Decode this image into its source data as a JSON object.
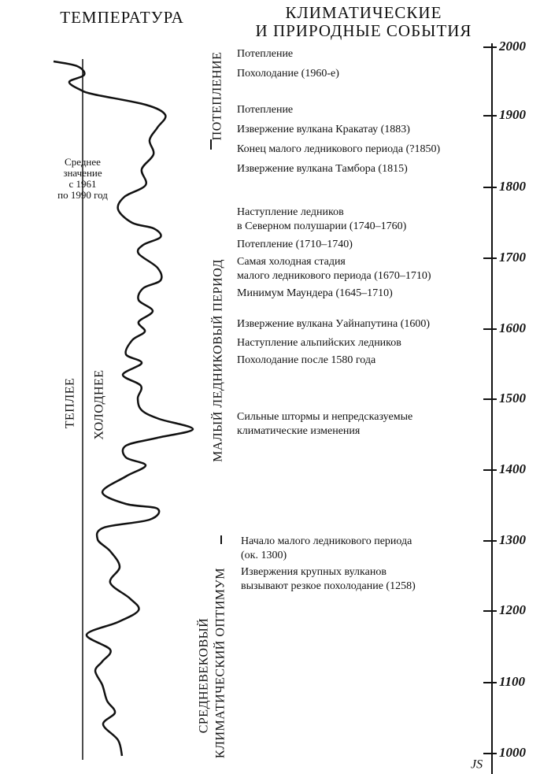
{
  "header": {
    "temperature": "ТЕМПЕРАТУРА",
    "events_title": [
      "КЛИМАТИЧЕСКИЕ",
      "И ПРИРОДНЫЕ СОБЫТИЯ"
    ]
  },
  "mean_label": [
    "Среднее",
    "значение",
    "с 1961",
    "по 1990 год"
  ],
  "warmer": "ТЕПЛЕЕ",
  "colder": "ХОЛОДНЕЕ",
  "periods": {
    "warming": "ПОТЕПЛЕНИЕ",
    "little_ice_age": "МАЛЫЙ ЛЕДНИКОВЫЙ ПЕРИОД",
    "medieval_optimum": [
      "СРЕДНЕВЕКОВЫЙ",
      "КЛИМАТИЧЕСКИЙ ОПТИМУМ"
    ]
  },
  "events": [
    [
      "Потепление"
    ],
    [
      "Похолодание (1960-е)"
    ],
    [
      "Потепление"
    ],
    [
      "Извержение вулкана Кракатау (1883)"
    ],
    [
      "Конец малого ледникового периода (?1850)"
    ],
    [
      "Извержение вулкана Тамбора (1815)"
    ],
    [
      "Наступление ледников",
      "в Северном полушарии (1740–1760)"
    ],
    [
      "Потепление (1710–1740)"
    ],
    [
      "Самая холодная стадия",
      "малого ледникового периода (1670–1710)"
    ],
    [
      "Минимум Маундера (1645–1710)"
    ],
    [
      "Извержение вулкана Уайнапутина (1600)"
    ],
    [
      "Наступление альпийских ледников"
    ],
    [
      "Похолодание после 1580 года"
    ],
    [
      "Сильные штормы и непредсказуемые",
      "климатические изменения"
    ],
    [
      "Начало малого ледникового периода",
      "(ок. 1300)"
    ],
    [
      "Извержения крупных вулканов",
      "вызывают резкое похолодание (1258)"
    ]
  ],
  "timeline": [
    "2000",
    "1900",
    "1800",
    "1700",
    "1600",
    "1500",
    "1400",
    "1300",
    "1200",
    "1100",
    "1000"
  ],
  "signature": "JS"
}
